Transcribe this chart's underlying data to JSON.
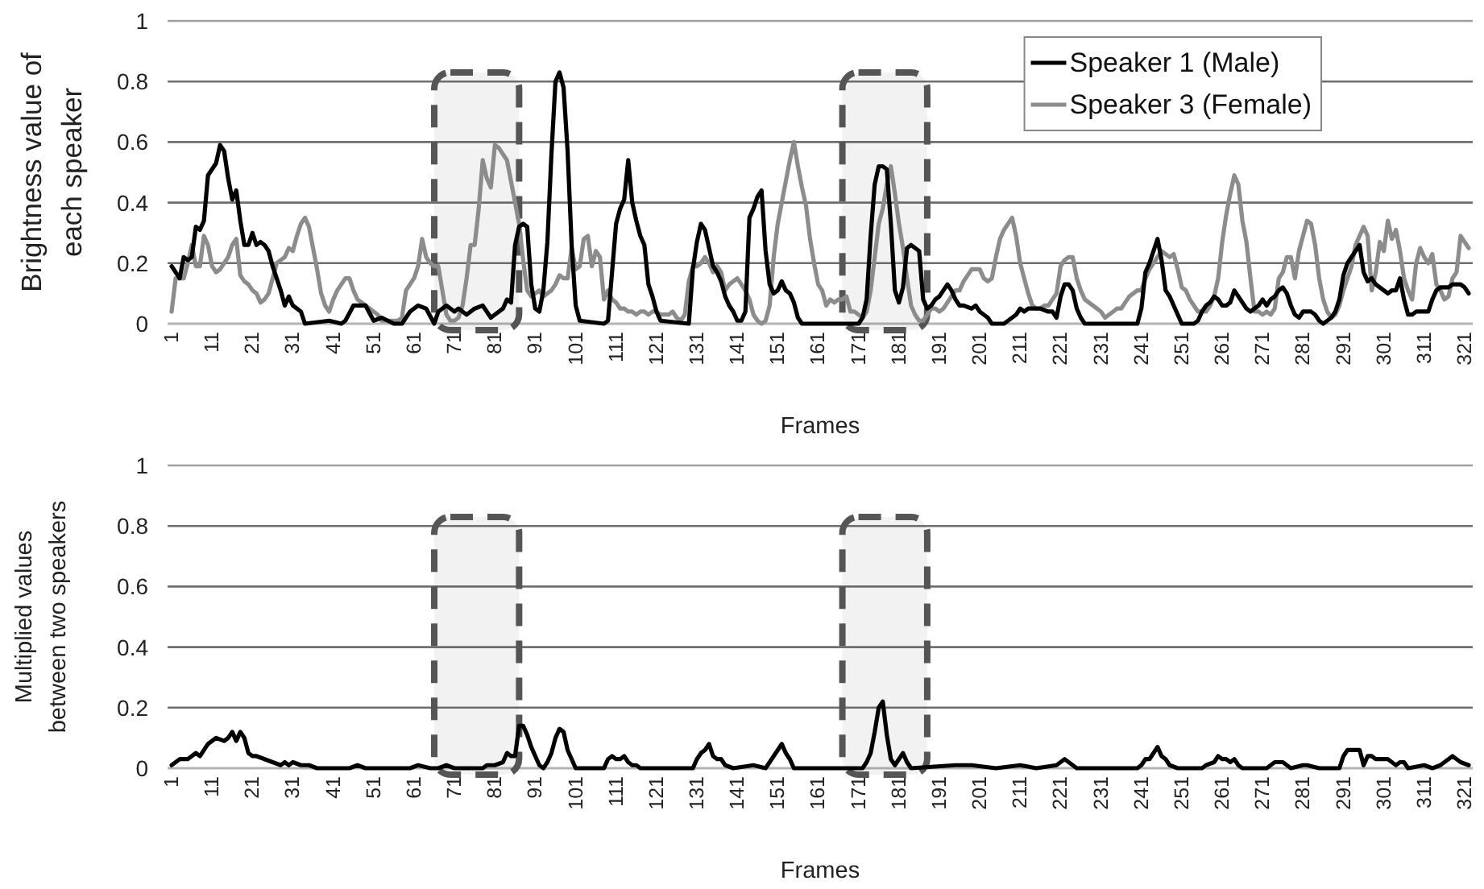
{
  "chart_data": [
    {
      "type": "line",
      "xlabel": "Frames",
      "ylabel": "Brightness value of each speaker",
      "xlim": [
        0,
        323
      ],
      "ylim": [
        0,
        1
      ],
      "yticks": [
        0,
        0.2,
        0.4,
        0.6,
        0.8,
        1
      ],
      "xticks": [
        1,
        11,
        21,
        31,
        41,
        51,
        61,
        71,
        81,
        91,
        101,
        111,
        121,
        131,
        141,
        151,
        161,
        171,
        181,
        191,
        201,
        211,
        221,
        231,
        241,
        251,
        261,
        271,
        281,
        291,
        301,
        311,
        321
      ],
      "grid": "y",
      "legend": "top right",
      "bands": [
        {
          "axis": "x",
          "from": 66,
          "to": 87,
          "color": "#555555"
        },
        {
          "axis": "x",
          "from": 167,
          "to": 188,
          "color": "#555555"
        }
      ],
      "x": [
        1,
        2,
        3,
        4,
        5,
        6,
        7,
        8,
        9,
        10,
        11,
        12,
        13,
        14,
        15,
        16,
        17,
        18,
        19,
        20,
        21,
        22,
        23,
        24,
        25,
        26,
        27,
        28,
        29,
        30,
        31,
        32,
        33,
        34,
        35,
        36,
        37,
        38,
        39,
        40,
        41,
        42,
        43,
        44,
        45,
        46,
        47,
        48,
        49,
        50,
        51,
        52,
        53,
        54,
        55,
        56,
        57,
        58,
        59,
        60,
        61,
        62,
        63,
        64,
        65,
        66,
        67,
        68,
        69,
        70,
        71,
        72,
        73,
        74,
        75,
        76,
        77,
        78,
        79,
        80,
        81,
        82,
        83,
        84,
        85,
        86,
        87,
        88,
        89,
        90,
        91,
        92,
        93,
        94,
        95,
        96,
        97,
        98,
        99,
        100,
        101,
        102,
        103,
        104,
        105,
        106,
        107,
        108,
        109,
        110,
        111,
        112,
        113,
        114,
        115,
        116,
        117,
        118,
        119,
        120,
        121,
        122,
        123,
        124,
        125,
        126,
        127,
        128,
        129,
        130,
        131,
        132,
        133,
        134,
        135,
        136,
        137,
        138,
        139,
        140,
        141,
        142,
        143,
        144,
        145,
        146,
        147,
        148,
        149,
        150,
        151,
        152,
        153,
        154,
        155,
        156,
        157,
        158,
        159,
        160,
        161,
        162,
        163,
        164,
        165,
        166,
        167,
        168,
        169,
        170,
        171,
        172,
        173,
        174,
        175,
        176,
        177,
        178,
        179,
        180,
        181,
        182,
        183,
        184,
        185,
        186,
        187,
        188,
        189,
        190,
        191,
        192,
        193,
        194,
        195,
        196,
        197,
        198,
        199,
        200,
        201,
        202,
        203,
        204,
        205,
        206,
        207,
        208,
        209,
        210,
        211,
        212,
        213,
        214,
        215,
        216,
        217,
        218,
        219,
        220,
        221,
        222,
        223,
        224,
        225,
        226,
        227,
        228,
        229,
        230,
        231,
        232,
        233,
        234,
        235,
        236,
        237,
        238,
        239,
        240,
        241,
        242,
        243,
        244,
        245,
        246,
        247,
        248,
        249,
        250,
        251,
        252,
        253,
        254,
        255,
        256,
        257,
        258,
        259,
        260,
        261,
        262,
        263,
        264,
        265,
        266,
        267,
        268,
        269,
        270,
        271,
        272,
        273,
        274,
        275,
        276,
        277,
        278,
        279,
        280,
        281,
        282,
        283,
        284,
        285,
        286,
        287,
        288,
        289,
        290,
        291,
        292,
        293,
        294,
        295,
        296,
        297,
        298,
        299,
        300,
        301,
        302,
        303,
        304,
        305,
        306,
        307,
        308,
        309,
        310,
        311,
        312,
        313,
        314,
        315,
        316,
        317,
        318,
        319,
        320,
        321,
        322
      ],
      "series": [
        {
          "name": "Speaker 1 (Male)",
          "color": "#000000",
          "x": [
            1,
            2,
            3,
            4,
            5,
            6,
            7,
            8,
            9,
            10,
            11,
            12,
            13,
            14,
            15,
            16,
            17,
            18,
            19,
            20,
            21,
            22,
            23,
            24,
            25,
            26,
            27,
            28,
            29,
            30,
            31,
            32,
            33,
            34,
            40,
            43,
            44,
            46,
            49,
            51,
            53,
            56,
            58,
            60,
            62,
            64,
            66,
            67,
            69,
            71,
            72,
            74,
            76,
            78,
            79,
            80,
            81,
            83,
            84,
            85,
            86,
            87,
            88,
            89,
            90,
            91,
            92,
            93,
            94,
            95,
            96,
            97,
            98,
            99,
            100,
            101,
            102,
            108,
            109,
            110,
            111,
            112,
            113,
            114,
            115,
            116,
            117,
            118,
            119,
            120,
            121,
            122,
            129,
            130,
            131,
            132,
            133,
            134,
            135,
            136,
            137,
            138,
            139,
            140,
            141,
            142,
            143,
            144,
            145,
            146,
            147,
            148,
            149,
            150,
            151,
            152,
            153,
            154,
            155,
            156,
            157,
            166,
            171,
            172,
            173,
            174,
            175,
            176,
            177,
            178,
            179,
            180,
            181,
            182,
            183,
            184,
            185,
            186,
            187,
            188,
            189,
            190,
            191,
            192,
            193,
            194,
            195,
            196,
            197,
            199,
            200,
            201,
            203,
            204,
            207,
            208,
            210,
            211,
            212,
            213,
            215,
            216,
            218,
            219,
            220,
            221,
            222,
            223,
            224,
            225,
            226,
            227,
            240,
            241,
            242,
            243,
            244,
            245,
            246,
            247,
            248,
            249,
            250,
            251,
            254,
            255,
            256,
            257,
            258,
            259,
            260,
            261,
            262,
            263,
            264,
            265,
            266,
            267,
            268,
            269,
            270,
            271,
            272,
            273,
            274,
            275,
            276,
            277,
            278,
            279,
            280,
            281,
            282,
            283,
            284,
            285,
            286,
            287,
            288,
            289,
            290,
            291,
            292,
            293,
            294,
            295,
            296,
            297,
            298,
            299,
            300,
            301,
            302,
            303,
            304,
            305,
            306,
            307,
            308,
            309,
            310,
            311,
            312,
            313,
            314,
            315,
            316,
            317,
            318,
            319,
            320,
            321,
            322
          ],
          "values": [
            0.19,
            0.17,
            0.15,
            0.22,
            0.21,
            0.22,
            0.32,
            0.31,
            0.34,
            0.49,
            0.51,
            0.53,
            0.59,
            0.57,
            0.48,
            0.41,
            0.44,
            0.34,
            0.26,
            0.26,
            0.3,
            0.26,
            0.27,
            0.26,
            0.24,
            0.19,
            0.15,
            0.11,
            0.06,
            0.09,
            0.06,
            0.05,
            0.04,
            0,
            0.01,
            0,
            0.01,
            0.06,
            0.06,
            0.01,
            0.02,
            0,
            0,
            0.04,
            0.06,
            0.05,
            0,
            0.04,
            0.06,
            0.04,
            0.05,
            0.03,
            0.05,
            0.06,
            0.04,
            0.02,
            0.03,
            0.05,
            0.08,
            0.07,
            0.26,
            0.32,
            0.33,
            0.32,
            0.13,
            0.05,
            0.04,
            0.11,
            0.27,
            0.56,
            0.8,
            0.83,
            0.78,
            0.57,
            0.26,
            0.06,
            0.01,
            0,
            0.01,
            0.17,
            0.33,
            0.38,
            0.41,
            0.54,
            0.4,
            0.34,
            0.29,
            0.26,
            0.13,
            0.09,
            0.04,
            0.01,
            0,
            0.18,
            0.27,
            0.33,
            0.31,
            0.25,
            0.19,
            0.17,
            0.14,
            0.09,
            0.06,
            0.04,
            0.01,
            0.01,
            0.04,
            0.35,
            0.38,
            0.42,
            0.44,
            0.24,
            0.13,
            0.1,
            0.11,
            0.14,
            0.11,
            0.1,
            0.07,
            0.02,
            0,
            0,
            0,
            0.02,
            0.08,
            0.29,
            0.46,
            0.52,
            0.52,
            0.51,
            0.33,
            0.11,
            0.07,
            0.12,
            0.25,
            0.26,
            0.25,
            0.24,
            0.08,
            0.05,
            0.06,
            0.08,
            0.09,
            0.11,
            0.13,
            0.11,
            0.08,
            0.06,
            0.06,
            0.05,
            0.06,
            0.04,
            0.02,
            0,
            0,
            0.01,
            0.03,
            0.05,
            0.04,
            0.05,
            0.05,
            0.05,
            0.04,
            0.04,
            0.02,
            0.09,
            0.13,
            0.13,
            0.11,
            0.05,
            0.02,
            0,
            0,
            0.05,
            0.17,
            0.2,
            0.24,
            0.28,
            0.21,
            0.11,
            0.09,
            0.06,
            0.03,
            0,
            0,
            0.01,
            0.04,
            0.06,
            0.07,
            0.09,
            0.08,
            0.06,
            0.06,
            0.07,
            0.11,
            0.09,
            0.07,
            0.05,
            0.04,
            0.05,
            0.06,
            0.08,
            0.06,
            0.08,
            0.09,
            0.11,
            0.12,
            0.1,
            0.06,
            0.03,
            0.02,
            0.04,
            0.04,
            0.04,
            0.03,
            0.01,
            0,
            0.01,
            0.02,
            0.04,
            0.08,
            0.16,
            0.2,
            0.22,
            0.24,
            0.26,
            0.17,
            0.14,
            0.15,
            0.13,
            0.12,
            0.11,
            0.1,
            0.11,
            0.11,
            0.15,
            0.08,
            0.03,
            0.03,
            0.04,
            0.04,
            0.04,
            0.04,
            0.08,
            0.11,
            0.12,
            0.12,
            0.12,
            0.13,
            0.13,
            0.13,
            0.12,
            0.1
          ]
        },
        {
          "name": "Speaker 3 (Female)",
          "color": "#8c8c8c",
          "values": [
            0.04,
            0.15,
            0.15,
            0.15,
            0.2,
            0.26,
            0.19,
            0.19,
            0.29,
            0.26,
            0.19,
            0.17,
            0.18,
            0.2,
            0.22,
            0.26,
            0.28,
            0.16,
            0.14,
            0.13,
            0.11,
            0.1,
            0.07,
            0.08,
            0.1,
            0.15,
            0.2,
            0.21,
            0.22,
            0.25,
            0.24,
            0.29,
            0.33,
            0.35,
            0.32,
            0.25,
            0.18,
            0.1,
            0.06,
            0.04,
            0.08,
            0.11,
            0.13,
            0.15,
            0.15,
            0.11,
            0.08,
            0.07,
            0.06,
            0.05,
            0.04,
            0.03,
            0.01,
            0.01,
            0.01,
            0.01,
            0.01,
            0.02,
            0.11,
            0.13,
            0.15,
            0.19,
            0.28,
            0.22,
            0.2,
            0.19,
            0.19,
            0.11,
            0.03,
            0.01,
            0.01,
            0.02,
            0.06,
            0.15,
            0.26,
            0.26,
            0.38,
            0.54,
            0.48,
            0.45,
            0.59,
            0.58,
            0.56,
            0.54,
            0.47,
            0.4,
            0.33,
            0.21,
            0.11,
            0.09,
            0.1,
            0.11,
            0.09,
            0.1,
            0.11,
            0.13,
            0.16,
            0.15,
            0.15,
            0.25,
            0.18,
            0.19,
            0.28,
            0.29,
            0.19,
            0.24,
            0.22,
            0.08,
            0.11,
            0.08,
            0.07,
            0.05,
            0.05,
            0.04,
            0.04,
            0.03,
            0.04,
            0.04,
            0.03,
            0.04,
            0.04,
            0.03,
            0.03,
            0.03,
            0.04,
            0.02,
            0.01,
            0.03,
            0.14,
            0.19,
            0.19,
            0.2,
            0.22,
            0.2,
            0.17,
            0.19,
            0.17,
            0.11,
            0.13,
            0.14,
            0.15,
            0.13,
            0.11,
            0.08,
            0.03,
            0.01,
            0,
            0.01,
            0.06,
            0.22,
            0.33,
            0.4,
            0.47,
            0.54,
            0.6,
            0.52,
            0.45,
            0.39,
            0.28,
            0.2,
            0.13,
            0.11,
            0.06,
            0.08,
            0.07,
            0.08,
            0.08,
            0.09,
            0.04,
            0.04,
            0.03,
            0.02,
            0.04,
            0.11,
            0.22,
            0.33,
            0.38,
            0.46,
            0.52,
            0.43,
            0.33,
            0.25,
            0.15,
            0.06,
            0.03,
            0.01,
            0.01,
            0.03,
            0.05,
            0.05,
            0.04,
            0.05,
            0.07,
            0.09,
            0.11,
            0.11,
            0.14,
            0.16,
            0.18,
            0.18,
            0.18,
            0.15,
            0.14,
            0.15,
            0.22,
            0.28,
            0.31,
            0.33,
            0.35,
            0.29,
            0.2,
            0.15,
            0.1,
            0.06,
            0.05,
            0.05,
            0.06,
            0.06,
            0.08,
            0.1,
            0.19,
            0.21,
            0.22,
            0.22,
            0.15,
            0.11,
            0.08,
            0.07,
            0.06,
            0.05,
            0.04,
            0.02,
            0.03,
            0.04,
            0.05,
            0.05,
            0.07,
            0.09,
            0.1,
            0.11,
            0.11,
            0.15,
            0.18,
            0.2,
            0.22,
            0.24,
            0.23,
            0.22,
            0.23,
            0.18,
            0.12,
            0.11,
            0.08,
            0.06,
            0.04,
            0.04,
            0.04,
            0.06,
            0.09,
            0.15,
            0.27,
            0.36,
            0.43,
            0.49,
            0.46,
            0.34,
            0.27,
            0.15,
            0.04,
            0.04,
            0.03,
            0.04,
            0.03,
            0.05,
            0.15,
            0.17,
            0.22,
            0.22,
            0.15,
            0.24,
            0.29,
            0.34,
            0.33,
            0.26,
            0.15,
            0.08,
            0.04,
            0.02,
            0.03,
            0.06,
            0.11,
            0.15,
            0.19,
            0.26,
            0.29,
            0.32,
            0.29,
            0.11,
            0.17,
            0.27,
            0.24,
            0.34,
            0.28,
            0.31,
            0.24,
            0.15,
            0.11,
            0.08,
            0.2,
            0.25,
            0.22,
            0.2,
            0.23,
            0.13,
            0.11,
            0.08,
            0.09,
            0.15,
            0.17,
            0.29,
            0.27,
            0.25
          ]
        }
      ]
    },
    {
      "type": "line",
      "xlabel": "Frames",
      "ylabel": "Multiplied values between two speakers",
      "xlim": [
        0,
        323
      ],
      "ylim": [
        0,
        1
      ],
      "yticks": [
        0,
        0.2,
        0.4,
        0.6,
        0.8,
        1
      ],
      "xticks": [
        1,
        11,
        21,
        31,
        41,
        51,
        61,
        71,
        81,
        91,
        101,
        111,
        121,
        131,
        141,
        151,
        161,
        171,
        181,
        191,
        201,
        211,
        221,
        231,
        241,
        251,
        261,
        271,
        281,
        291,
        301,
        311,
        321
      ],
      "grid": "y",
      "bands": [
        {
          "axis": "x",
          "from": 66,
          "to": 87,
          "color": "#555555"
        },
        {
          "axis": "x",
          "from": 167,
          "to": 188,
          "color": "#555555"
        }
      ],
      "series": [
        {
          "color": "#000000",
          "x": [
            1,
            3,
            5,
            7,
            8,
            10,
            12,
            14,
            15,
            16,
            17,
            18,
            19,
            20,
            21,
            22,
            24,
            26,
            28,
            29,
            30,
            31,
            33,
            35,
            37,
            45,
            47,
            49,
            60,
            62,
            65,
            67,
            69,
            71,
            78,
            79,
            81,
            83,
            84,
            85,
            86,
            87,
            88,
            89,
            90,
            91,
            92,
            93,
            94,
            95,
            96,
            97,
            98,
            99,
            100,
            101,
            108,
            109,
            110,
            111,
            112,
            113,
            114,
            115,
            116,
            117,
            130,
            131,
            132,
            133,
            134,
            135,
            136,
            137,
            138,
            140,
            145,
            148,
            149,
            150,
            151,
            152,
            153,
            154,
            155,
            172,
            173,
            174,
            175,
            176,
            177,
            178,
            179,
            180,
            181,
            182,
            183,
            184,
            195,
            199,
            205,
            211,
            215,
            220,
            221,
            222,
            223,
            224,
            225,
            240,
            241,
            242,
            243,
            244,
            245,
            246,
            247,
            248,
            250,
            256,
            257,
            259,
            260,
            261,
            262,
            263,
            264,
            265,
            266,
            272,
            273,
            274,
            275,
            276,
            277,
            278,
            281,
            282,
            285,
            290,
            291,
            292,
            293,
            295,
            296,
            297,
            298,
            299,
            300,
            301,
            302,
            303,
            304,
            305,
            306,
            307,
            311,
            313,
            315,
            316,
            317,
            318,
            319,
            320,
            322
          ],
          "values": [
            0.01,
            0.03,
            0.03,
            0.05,
            0.04,
            0.08,
            0.1,
            0.09,
            0.1,
            0.12,
            0.09,
            0.12,
            0.1,
            0.05,
            0.04,
            0.04,
            0.03,
            0.02,
            0.01,
            0.02,
            0.01,
            0.02,
            0.01,
            0.01,
            0,
            0,
            0.01,
            0,
            0,
            0.01,
            0,
            0,
            0.01,
            0,
            0,
            0.01,
            0.01,
            0.02,
            0.05,
            0.04,
            0.04,
            0.14,
            0.14,
            0.11,
            0.07,
            0.04,
            0.01,
            0,
            0.02,
            0.05,
            0.1,
            0.13,
            0.12,
            0.06,
            0.03,
            0,
            0,
            0.03,
            0.04,
            0.03,
            0.03,
            0.04,
            0.02,
            0.01,
            0.01,
            0,
            0,
            0.03,
            0.05,
            0.06,
            0.08,
            0.04,
            0.03,
            0.03,
            0.01,
            0,
            0.01,
            0,
            0.02,
            0.04,
            0.06,
            0.08,
            0.05,
            0.03,
            0,
            0,
            0.02,
            0.05,
            0.12,
            0.2,
            0.22,
            0.11,
            0.03,
            0.01,
            0.03,
            0.05,
            0.02,
            0,
            0.01,
            0.01,
            0,
            0.01,
            0,
            0.01,
            0.02,
            0.03,
            0.02,
            0.01,
            0,
            0,
            0.01,
            0.03,
            0.03,
            0.05,
            0.07,
            0.04,
            0.03,
            0.01,
            0,
            0,
            0.01,
            0.02,
            0.04,
            0.03,
            0.03,
            0.02,
            0.03,
            0.01,
            0,
            0,
            0.01,
            0.02,
            0.02,
            0.02,
            0.01,
            0,
            0.01,
            0.01,
            0,
            0,
            0.04,
            0.06,
            0.06,
            0.06,
            0.01,
            0.04,
            0.04,
            0.03,
            0.03,
            0.03,
            0.03,
            0.02,
            0.01,
            0.02,
            0.02,
            0,
            0.01,
            0,
            0.01,
            0.02,
            0.03,
            0.04,
            0.03,
            0.02,
            0.01
          ]
        }
      ]
    }
  ]
}
